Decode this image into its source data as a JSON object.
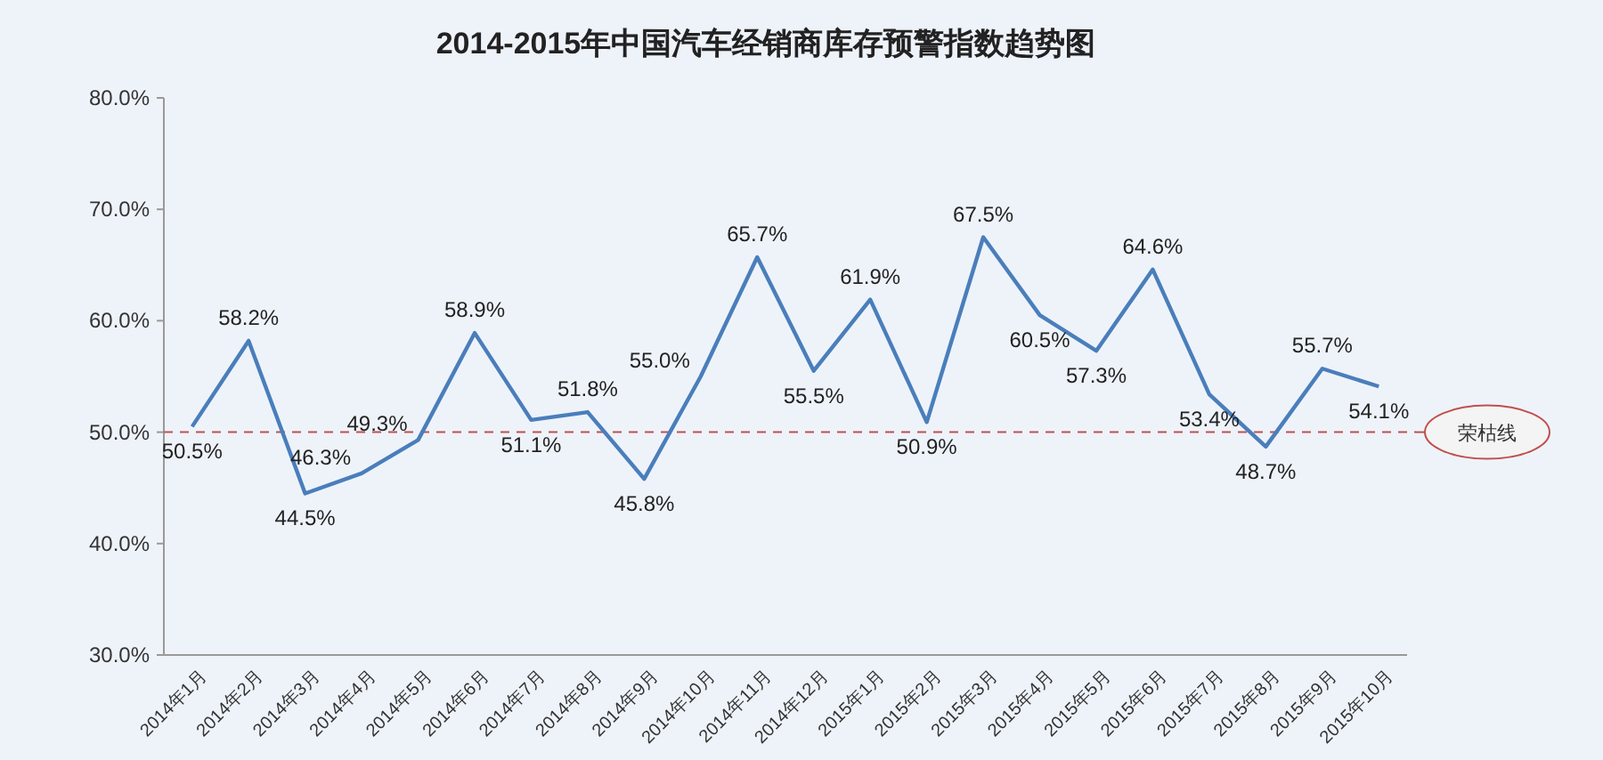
{
  "chart_data": {
    "type": "line",
    "title": "2014-2015年中国汽车经销商库存预警指数趋势图",
    "categories": [
      "2014年1月",
      "2014年2月",
      "2014年3月",
      "2014年4月",
      "2014年5月",
      "2014年6月",
      "2014年7月",
      "2014年8月",
      "2014年9月",
      "2014年10月",
      "2014年11月",
      "2014年12月",
      "2015年1月",
      "2015年2月",
      "2015年3月",
      "2015年4月",
      "2015年5月",
      "2015年6月",
      "2015年7月",
      "2015年8月",
      "2015年9月",
      "2015年10月"
    ],
    "series": [
      {
        "color": "#4a7ebb",
        "values": [
          50.5,
          58.2,
          44.5,
          46.3,
          49.3,
          58.9,
          51.1,
          51.8,
          45.8,
          55.0,
          65.7,
          55.5,
          61.9,
          50.9,
          67.5,
          60.5,
          57.3,
          64.6,
          53.4,
          48.7,
          55.7,
          54.1
        ],
        "value_labels": [
          "50.5%",
          "58.2%",
          "44.5%",
          "46.3%",
          "49.3%",
          "58.9%",
          "51.1%",
          "51.8%",
          "45.8%",
          "55.0%",
          "65.7%",
          "55.5%",
          "61.9%",
          "50.9%",
          "67.5%",
          "60.5%",
          "57.3%",
          "64.6%",
          "53.4%",
          "48.7%",
          "55.7%",
          "54.1%"
        ]
      }
    ],
    "ylim": [
      30,
      80
    ],
    "yticks": [
      {
        "value": 30,
        "label": "30.0%"
      },
      {
        "value": 40,
        "label": "40.0%"
      },
      {
        "value": 50,
        "label": "50.0%"
      },
      {
        "value": 60,
        "label": "60.0%"
      },
      {
        "value": 70,
        "label": "70.0%"
      },
      {
        "value": 80,
        "label": "80.0%"
      }
    ],
    "ref_lines": [
      {
        "axis": "y",
        "value": 50,
        "label": "荣枯线",
        "color": "#c0504d",
        "line_style": "dashed"
      }
    ],
    "marker": "none",
    "line_style": "solid",
    "grid": false
  }
}
